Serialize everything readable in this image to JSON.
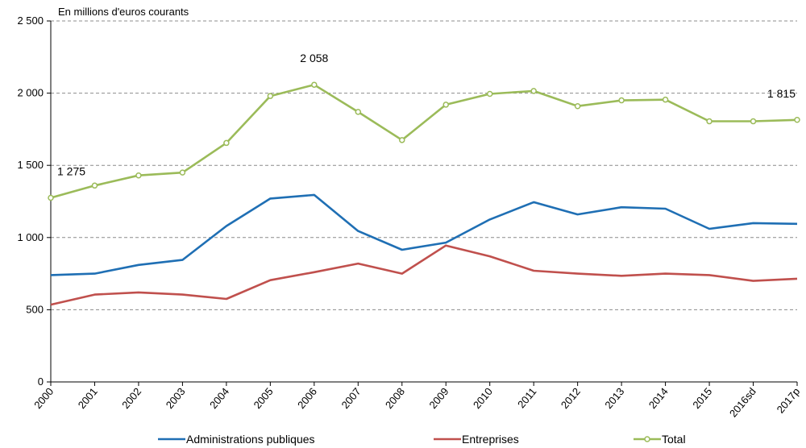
{
  "chart_data": {
    "type": "line",
    "title": "",
    "unit_label": "En millions d'euros courants",
    "xlabel": "",
    "ylabel": "",
    "categories": [
      "2000",
      "2001",
      "2002",
      "2003",
      "2004",
      "2005",
      "2006",
      "2007",
      "2008",
      "2009",
      "2010",
      "2011",
      "2012",
      "2013",
      "2014",
      "2015",
      "2016sd",
      "2017p"
    ],
    "ylim": [
      0,
      2500
    ],
    "yticks": [
      0,
      500,
      1000,
      1500,
      2000,
      2500
    ],
    "ytick_labels": [
      "0",
      "500",
      "1 000",
      "1 500",
      "2 000",
      "2 500"
    ],
    "grid": true,
    "legend_position": "bottom",
    "series": [
      {
        "name": "Administrations publiques",
        "color": "#1f6fb4",
        "markers": false,
        "values": [
          740,
          750,
          810,
          845,
          1080,
          1270,
          1295,
          1045,
          915,
          965,
          1125,
          1245,
          1160,
          1210,
          1200,
          1060,
          1100,
          1095
        ]
      },
      {
        "name": "Entreprises",
        "color": "#c0504d",
        "markers": false,
        "values": [
          535,
          605,
          620,
          605,
          575,
          705,
          760,
          820,
          750,
          945,
          870,
          770,
          750,
          735,
          750,
          740,
          700,
          715
        ]
      },
      {
        "name": "Total",
        "color": "#9bbb59",
        "markers": true,
        "values": [
          1275,
          1360,
          1430,
          1450,
          1655,
          1980,
          2058,
          1870,
          1675,
          1920,
          1995,
          2015,
          1910,
          1950,
          1955,
          1805,
          1805,
          1815
        ]
      }
    ],
    "annotations": [
      {
        "text": "1 275",
        "series": "Total",
        "category": "2000"
      },
      {
        "text": "2 058",
        "series": "Total",
        "category": "2006"
      },
      {
        "text": "1 815",
        "series": "Total",
        "category": "2017p"
      }
    ]
  }
}
